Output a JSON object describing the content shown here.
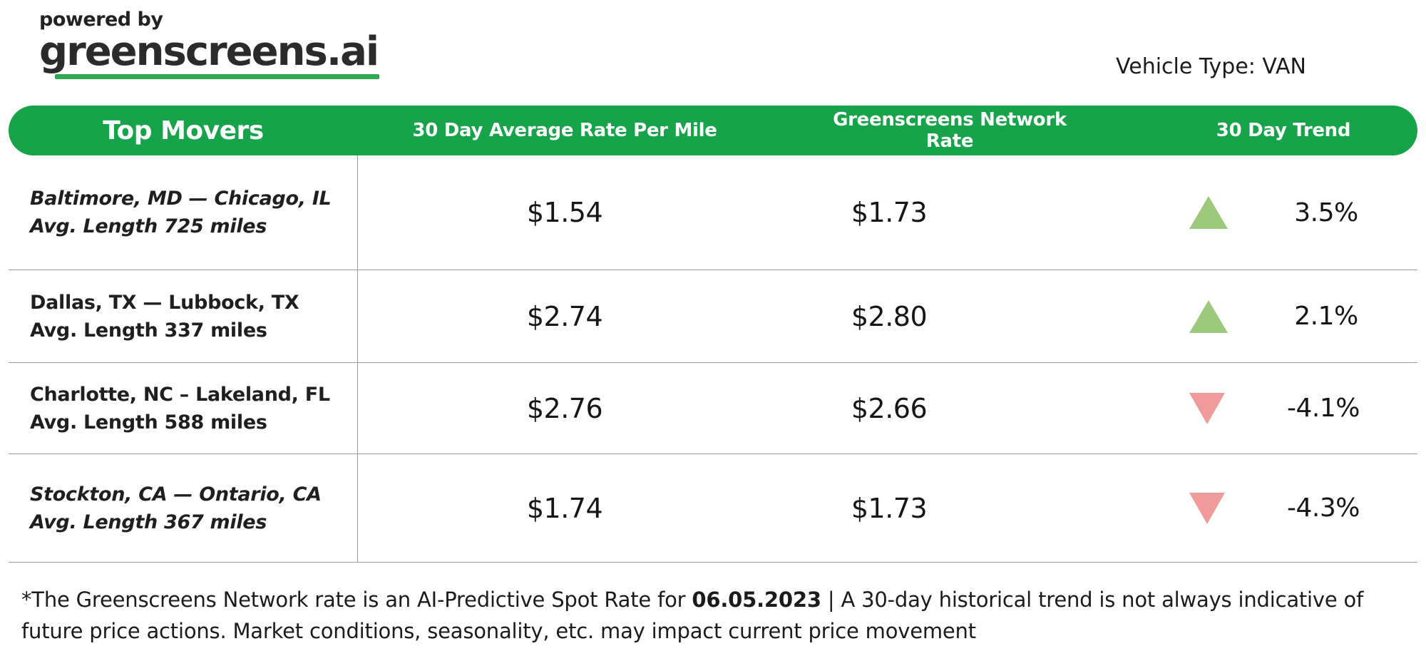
{
  "header": {
    "powered_by": "powered by",
    "brand": "greenscreens.ai",
    "vehicle_type": "Vehicle Type: VAN"
  },
  "table": {
    "title": "Top Movers",
    "columns": [
      "30 Day Average Rate Per Mile",
      "Greenscreens Network Rate",
      "30 Day Trend"
    ],
    "rows": [
      {
        "lane": "Baltimore, MD — Chicago, IL",
        "avg_length": "Avg. Length 725 miles",
        "avg_rate_per_mile": "$1.54",
        "network_rate": "$1.73",
        "trend_pct": "3.5%",
        "trend_direction": "up"
      },
      {
        "lane": "Dallas, TX — Lubbock, TX",
        "avg_length": "Avg. Length 337 miles",
        "avg_rate_per_mile": "$2.74",
        "network_rate": "$2.80",
        "trend_pct": "2.1%",
        "trend_direction": "up"
      },
      {
        "lane": "Charlotte, NC – Lakeland, FL",
        "avg_length": "Avg. Length 588 miles",
        "avg_rate_per_mile": "$2.76",
        "network_rate": "$2.66",
        "trend_pct": "-4.1%",
        "trend_direction": "down"
      },
      {
        "lane": "Stockton, CA — Ontario, CA",
        "avg_length": "Avg. Length 367 miles",
        "avg_rate_per_mile": "$1.74",
        "network_rate": "$1.73",
        "trend_pct": "-4.3%",
        "trend_direction": "down"
      }
    ]
  },
  "footer": {
    "note_prefix": "*The Greenscreens Network rate is an AI-Predictive Spot Rate for ",
    "note_date": "06.05.2023",
    "note_suffix": " | A 30-day historical trend is not always indicative of future price actions. Market conditions, seasonality, etc. may impact current price movement"
  },
  "colors": {
    "brand_green": "#16A34A",
    "logo_underline_green": "#2EA853",
    "trend_up_green": "#9CC97C",
    "trend_down_red": "#F09A9C"
  }
}
